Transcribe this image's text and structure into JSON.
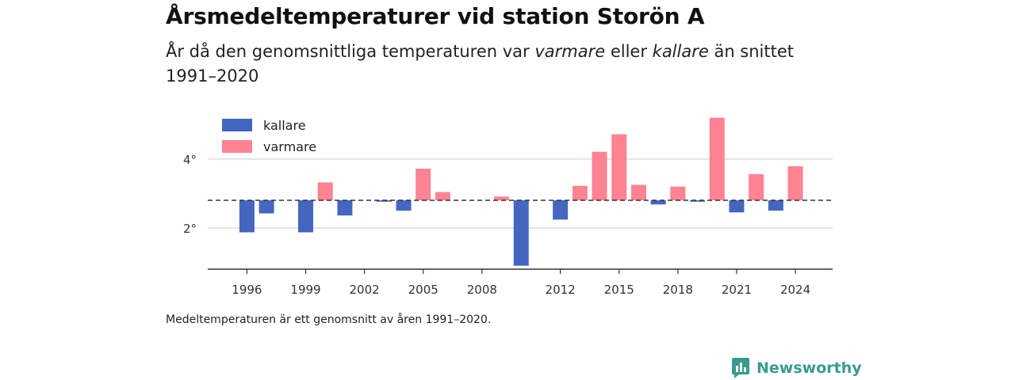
{
  "header": {
    "title": "Årsmedeltemperaturer vid station Storön A",
    "subtitle_pre": "År då den genomsnittliga temperaturen var ",
    "subtitle_warm": "varmare",
    "subtitle_mid": " eller ",
    "subtitle_cold": "kallare",
    "subtitle_post": " än snittet 1991–2020"
  },
  "footnote": "Medeltemperaturen är ett genomsnitt av åren 1991–2020.",
  "brand": {
    "name": "Newsworthy",
    "icon": "newsworthy-logo-icon",
    "color": "#3a9a90"
  },
  "colors": {
    "kallare": "#4466c0",
    "varmare": "#ff8392",
    "baseline": "#333333",
    "grid": "#dddddd",
    "axis": "#333333"
  },
  "chart_data": {
    "type": "bar",
    "baseline": 2.8,
    "ylim": [
      0.8,
      5.4
    ],
    "yticks": [
      2,
      4
    ],
    "ytick_suffix": "°",
    "xticks": [
      1996,
      1999,
      2002,
      2005,
      2008,
      2012,
      2015,
      2018,
      2021,
      2024
    ],
    "legend": {
      "position": "top-left",
      "entries": [
        {
          "key": "kallare",
          "label": "kallare"
        },
        {
          "key": "varmare",
          "label": "varmare"
        }
      ]
    },
    "series": [
      {
        "name": "kallare",
        "points": [
          {
            "x": 1996,
            "y": 1.87
          },
          {
            "x": 1997,
            "y": 2.42
          },
          {
            "x": 1999,
            "y": 1.87
          },
          {
            "x": 2001,
            "y": 2.36
          },
          {
            "x": 2003,
            "y": 2.76
          },
          {
            "x": 2004,
            "y": 2.5
          },
          {
            "x": 2010,
            "y": 0.9
          },
          {
            "x": 2012,
            "y": 2.24
          },
          {
            "x": 2017,
            "y": 2.68
          },
          {
            "x": 2019,
            "y": 2.76
          },
          {
            "x": 2021,
            "y": 2.45
          },
          {
            "x": 2023,
            "y": 2.5
          }
        ]
      },
      {
        "name": "varmare",
        "points": [
          {
            "x": 2000,
            "y": 3.32
          },
          {
            "x": 2005,
            "y": 3.72
          },
          {
            "x": 2006,
            "y": 3.04
          },
          {
            "x": 2009,
            "y": 2.91
          },
          {
            "x": 2013,
            "y": 3.22
          },
          {
            "x": 2014,
            "y": 4.21
          },
          {
            "x": 2015,
            "y": 4.72
          },
          {
            "x": 2016,
            "y": 3.25
          },
          {
            "x": 2018,
            "y": 3.2
          },
          {
            "x": 2020,
            "y": 5.2
          },
          {
            "x": 2022,
            "y": 3.56
          },
          {
            "x": 2024,
            "y": 3.79
          }
        ]
      }
    ]
  }
}
